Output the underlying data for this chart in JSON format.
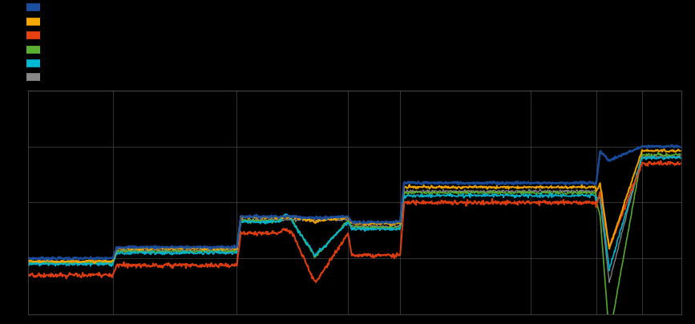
{
  "background_color": "#000000",
  "plot_bg_color": "#000000",
  "grid_color": "#4a4a4a",
  "line_colors": [
    "#1a4fa0",
    "#f5a800",
    "#e84010",
    "#5ab030",
    "#00b8d4",
    "#888888"
  ],
  "line_widths": [
    1.8,
    1.5,
    1.5,
    1.2,
    1.3,
    1.0
  ],
  "figsize": [
    8.67,
    4.04
  ],
  "dpi": 100,
  "n_points": 1000,
  "segs": [
    0,
    130,
    320,
    490,
    570,
    770,
    870,
    940,
    1000
  ],
  "levels": {
    "blue": [
      4.5,
      4.9,
      6.0,
      5.8,
      7.2,
      7.2,
      8.5,
      8.5
    ],
    "orange": [
      4.4,
      4.85,
      5.97,
      5.75,
      7.05,
      7.05,
      8.35,
      8.35
    ],
    "red": [
      3.9,
      4.25,
      5.4,
      4.6,
      6.5,
      6.5,
      7.9,
      7.9
    ],
    "green": [
      4.35,
      4.75,
      5.85,
      5.6,
      6.85,
      6.85,
      8.2,
      8.2
    ],
    "cyan": [
      4.3,
      4.7,
      5.8,
      5.55,
      6.75,
      6.75,
      8.1,
      8.1
    ],
    "gray": [
      4.35,
      4.78,
      5.88,
      5.65,
      6.9,
      6.9,
      8.15,
      8.15
    ]
  },
  "ylim": [
    2.5,
    10.5
  ],
  "noise": 0.018
}
